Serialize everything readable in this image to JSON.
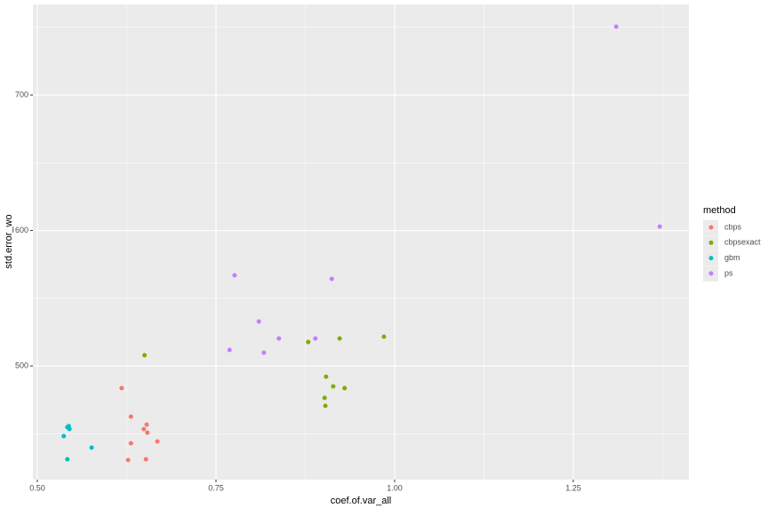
{
  "chart_data": {
    "type": "scatter",
    "xlabel": "coef.of.var_all",
    "ylabel": "std.error_wo",
    "xlim": [
      0.4938,
      1.4117
    ],
    "ylim": [
      416.1,
      766.9
    ],
    "xticks": [
      {
        "value": 0.5,
        "label": "0.50"
      },
      0.75,
      {
        "value": 1.0,
        "label": "1.00"
      },
      1.25
    ],
    "yticks": [
      500,
      600,
      700
    ],
    "minor_xgrid": [
      0.625,
      0.875,
      1.125,
      1.375
    ],
    "minor_ygrid": [
      450,
      550,
      650,
      750
    ],
    "grid": true,
    "legend_title": "method",
    "legend": "right",
    "series": [
      {
        "name": "cbps",
        "color": "#F8766D",
        "x": [
          0.618,
          0.631,
          0.631,
          0.627,
          0.652,
          0.653,
          0.649,
          0.654,
          0.668
        ],
        "values": [
          483.6,
          462.6,
          442.9,
          430.5,
          431.1,
          456.7,
          453.4,
          450.8,
          444.3
        ]
      },
      {
        "name": "cbpsexact",
        "color": "#7CAE00",
        "x": [
          0.65,
          0.879,
          0.923,
          0.985,
          0.904,
          0.914,
          0.93,
          0.902,
          0.903
        ],
        "values": [
          507.9,
          517.7,
          520.3,
          521.6,
          492.1,
          484.9,
          483.6,
          476.4,
          470.5
        ]
      },
      {
        "name": "gbm",
        "color": "#00BFC4",
        "x": [
          0.537,
          0.542,
          0.542,
          0.545,
          0.544,
          0.576
        ],
        "values": [
          448.2,
          431.1,
          454.8,
          453.4,
          455.6,
          439.7
        ]
      },
      {
        "name": "ps",
        "color": "#C77CFF",
        "x": [
          1.31,
          1.371,
          0.776,
          0.912,
          0.81,
          0.838,
          0.889,
          0.769,
          0.817
        ],
        "values": [
          750.5,
          602.9,
          566.9,
          564.3,
          532.8,
          520.3,
          520.3,
          511.8,
          509.8
        ]
      }
    ]
  }
}
